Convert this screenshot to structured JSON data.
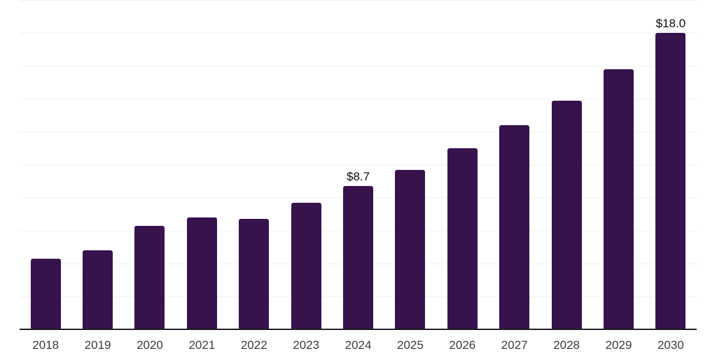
{
  "chart_data": {
    "type": "bar",
    "title": "",
    "xlabel": "",
    "ylabel": "",
    "categories": [
      "2018",
      "2019",
      "2020",
      "2021",
      "2022",
      "2023",
      "2024",
      "2025",
      "2026",
      "2027",
      "2028",
      "2029",
      "2030"
    ],
    "values": [
      4.3,
      4.8,
      6.3,
      6.8,
      6.7,
      7.7,
      8.7,
      9.7,
      11.0,
      12.4,
      13.9,
      15.8,
      18.0
    ],
    "data_labels": [
      "",
      "",
      "",
      "",
      "",
      "",
      "$8.7",
      "",
      "",
      "",
      "",
      "",
      "$18.0"
    ],
    "value_prefix": "$",
    "ylim": [
      0,
      20
    ],
    "gridline_step": 2,
    "grid": "horizontal-only",
    "y_tick_labels_visible": false,
    "legend": "none"
  },
  "colors": {
    "bar": "#37134E",
    "grid": "#F1F1F1",
    "axis": "#222222",
    "tick_label": "#3A3A3A",
    "data_label": "#0A0A0A",
    "background": "#FFFFFF"
  }
}
